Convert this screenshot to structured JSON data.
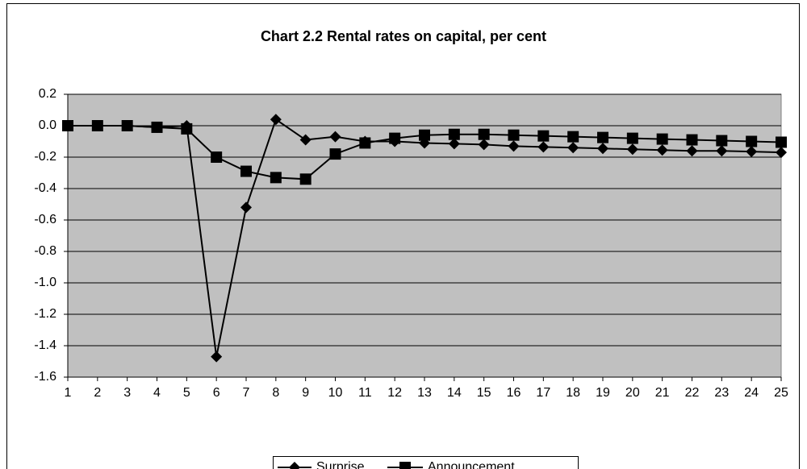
{
  "chart_data": {
    "type": "line",
    "title": "Chart 2.2 Rental rates on capital, per cent",
    "x": [
      1,
      2,
      3,
      4,
      5,
      6,
      7,
      8,
      9,
      10,
      11,
      12,
      13,
      14,
      15,
      16,
      17,
      18,
      19,
      20,
      21,
      22,
      23,
      24,
      25
    ],
    "xlim": [
      1,
      25
    ],
    "xticks": [
      1,
      2,
      3,
      4,
      5,
      6,
      7,
      8,
      9,
      10,
      11,
      12,
      13,
      14,
      15,
      16,
      17,
      18,
      19,
      20,
      21,
      22,
      23,
      24,
      25
    ],
    "ylim": [
      -1.6,
      0.2
    ],
    "yticks": [
      {
        "value": -1.6,
        "label": "-1.6"
      },
      -1.4,
      -1.2,
      {
        "value": -1.0,
        "label": "-1.0"
      },
      -0.8,
      -0.6,
      -0.4,
      -0.2,
      {
        "value": 0,
        "label": "0.0"
      },
      0.2
    ],
    "grid": true,
    "legend": "bottom",
    "series": [
      {
        "name": "Surprise",
        "color": "#000000",
        "marker": "diamond",
        "values": [
          0,
          0,
          0,
          -0.01,
          0,
          -1.47,
          -0.52,
          0.04,
          -0.09,
          -0.07,
          -0.1,
          -0.1,
          -0.11,
          -0.115,
          -0.12,
          -0.13,
          -0.135,
          -0.14,
          -0.145,
          -0.15,
          -0.155,
          -0.16,
          -0.16,
          -0.165,
          -0.17
        ]
      },
      {
        "name": "Announcement",
        "color": "#000000",
        "marker": "square",
        "values": [
          0,
          0,
          0,
          -0.01,
          -0.02,
          -0.2,
          -0.29,
          -0.33,
          -0.34,
          -0.18,
          -0.11,
          -0.08,
          -0.06,
          -0.055,
          -0.055,
          -0.06,
          -0.065,
          -0.07,
          -0.075,
          -0.08,
          -0.085,
          -0.09,
          -0.095,
          -0.1,
          -0.105
        ]
      }
    ]
  }
}
